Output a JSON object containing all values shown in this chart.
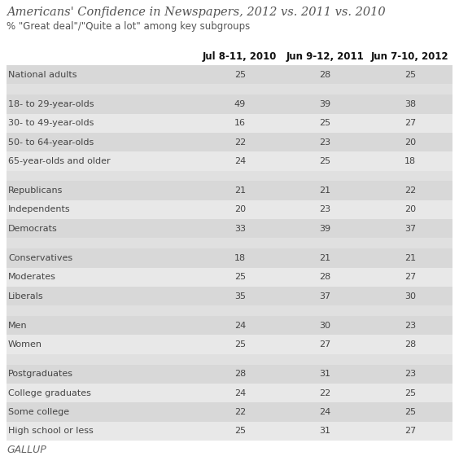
{
  "title": "Americans' Confidence in Newspapers, 2012 vs. 2011 vs. 2010",
  "subtitle": "% \"Great deal\"/\"Quite a lot\" among key subgroups",
  "col_headers": [
    "Jul 8-11, 2010",
    "Jun 9-12, 2011",
    "Jun 7-10, 2012"
  ],
  "rows": [
    {
      "label": "National adults",
      "vals": [
        25,
        28,
        25
      ],
      "group": "data"
    },
    {
      "label": "",
      "vals": [
        null,
        null,
        null
      ],
      "group": "spacer"
    },
    {
      "label": "18- to 29-year-olds",
      "vals": [
        49,
        39,
        38
      ],
      "group": "data"
    },
    {
      "label": "30- to 49-year-olds",
      "vals": [
        16,
        25,
        27
      ],
      "group": "data"
    },
    {
      "label": "50- to 64-year-olds",
      "vals": [
        22,
        23,
        20
      ],
      "group": "data"
    },
    {
      "label": "65-year-olds and older",
      "vals": [
        24,
        25,
        18
      ],
      "group": "data"
    },
    {
      "label": "",
      "vals": [
        null,
        null,
        null
      ],
      "group": "spacer"
    },
    {
      "label": "Republicans",
      "vals": [
        21,
        21,
        22
      ],
      "group": "data"
    },
    {
      "label": "Independents",
      "vals": [
        20,
        23,
        20
      ],
      "group": "data"
    },
    {
      "label": "Democrats",
      "vals": [
        33,
        39,
        37
      ],
      "group": "data"
    },
    {
      "label": "",
      "vals": [
        null,
        null,
        null
      ],
      "group": "spacer"
    },
    {
      "label": "Conservatives",
      "vals": [
        18,
        21,
        21
      ],
      "group": "data"
    },
    {
      "label": "Moderates",
      "vals": [
        25,
        28,
        27
      ],
      "group": "data"
    },
    {
      "label": "Liberals",
      "vals": [
        35,
        37,
        30
      ],
      "group": "data"
    },
    {
      "label": "",
      "vals": [
        null,
        null,
        null
      ],
      "group": "spacer"
    },
    {
      "label": "Men",
      "vals": [
        24,
        30,
        23
      ],
      "group": "data"
    },
    {
      "label": "Women",
      "vals": [
        25,
        27,
        28
      ],
      "group": "data"
    },
    {
      "label": "",
      "vals": [
        null,
        null,
        null
      ],
      "group": "spacer"
    },
    {
      "label": "Postgraduates",
      "vals": [
        28,
        31,
        23
      ],
      "group": "data"
    },
    {
      "label": "College graduates",
      "vals": [
        24,
        22,
        25
      ],
      "group": "data"
    },
    {
      "label": "Some college",
      "vals": [
        22,
        24,
        25
      ],
      "group": "data"
    },
    {
      "label": "High school or less",
      "vals": [
        25,
        31,
        27
      ],
      "group": "data"
    }
  ],
  "footer": "GALLUP",
  "white_color": "#ffffff",
  "text_color": "#444444",
  "title_color": "#555555",
  "footer_color": "#666666",
  "data_row_colors": [
    "#d8d8d8",
    "#e8e8e8"
  ],
  "spacer_color": "#e0e0e0",
  "header_color": "#ffffff",
  "label_fontsize": 8.0,
  "header_fontsize": 8.5,
  "value_fontsize": 8.0,
  "title_fontsize": 10.5,
  "subtitle_fontsize": 8.5,
  "footer_fontsize": 9.0
}
